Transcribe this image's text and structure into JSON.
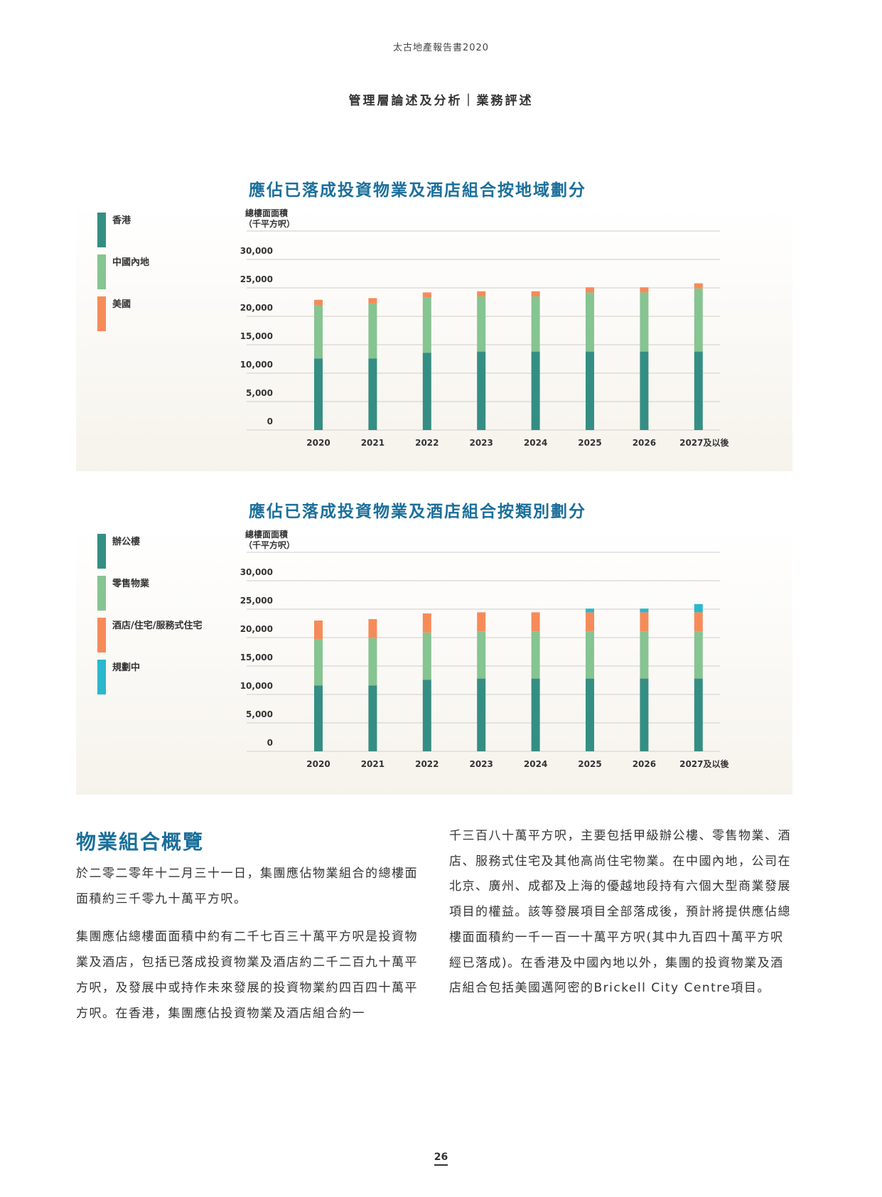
{
  "header": {
    "report_title": "太古地產報告書2020",
    "section": "管理層論述及分析｜業務評述"
  },
  "colors": {
    "teal": "#358e83",
    "green": "#86c491",
    "orange": "#f68b5a",
    "cyan": "#2bb8cc",
    "title_blue": "#1b6f9b"
  },
  "chart_data": [
    {
      "type": "bar",
      "stacked": true,
      "title": "應佔已落成投資物業及酒店組合按地域劃分",
      "ylabel": "總樓面面積\n（千平方呎）",
      "ylabel_lines": [
        "總樓面面積",
        "（千平方呎）"
      ],
      "ylim": [
        0,
        35000
      ],
      "yticks": [
        0,
        5000,
        10000,
        15000,
        20000,
        25000,
        30000
      ],
      "ytick_labels": [
        "0",
        "5,000",
        "10,000",
        "15,000",
        "20,000",
        "25,000",
        "30,000"
      ],
      "grid": true,
      "legend_position": "left",
      "categories": [
        "2020",
        "2021",
        "2022",
        "2023",
        "2024",
        "2025",
        "2026",
        "2027及以後"
      ],
      "series": [
        {
          "name": "香港",
          "color": "#358e83",
          "values": [
            12600,
            12600,
            13600,
            13800,
            13800,
            13800,
            13800,
            13800
          ]
        },
        {
          "name": "中國內地",
          "color": "#86c491",
          "values": [
            9400,
            9700,
            9700,
            9700,
            9700,
            10400,
            10400,
            11100
          ]
        },
        {
          "name": "美國",
          "color": "#f68b5a",
          "values": [
            900,
            900,
            900,
            900,
            900,
            900,
            900,
            900
          ]
        }
      ]
    },
    {
      "type": "bar",
      "stacked": true,
      "title": "應佔已落成投資物業及酒店組合按類別劃分",
      "ylabel_lines": [
        "總樓面面積",
        "（千平方呎）"
      ],
      "ylim": [
        0,
        35000
      ],
      "yticks": [
        0,
        5000,
        10000,
        15000,
        20000,
        25000,
        30000
      ],
      "ytick_labels": [
        "0",
        "5,000",
        "10,000",
        "15,000",
        "20,000",
        "25,000",
        "30,000"
      ],
      "grid": true,
      "legend_position": "left",
      "categories": [
        "2020",
        "2021",
        "2022",
        "2023",
        "2024",
        "2025",
        "2026",
        "2027及以後"
      ],
      "series": [
        {
          "name": "辦公樓",
          "color": "#358e83",
          "values": [
            11600,
            11600,
            12600,
            12800,
            12800,
            12800,
            12800,
            12800
          ]
        },
        {
          "name": "零售物業",
          "color": "#86c491",
          "values": [
            8100,
            8300,
            8300,
            8300,
            8300,
            8300,
            8300,
            8300
          ]
        },
        {
          "name": "酒店/住宅/服務式住宅",
          "color": "#f68b5a",
          "values": [
            3300,
            3350,
            3350,
            3350,
            3350,
            3350,
            3350,
            3350
          ]
        },
        {
          "name": "規劃中",
          "color": "#2bb8cc",
          "values": [
            0,
            0,
            0,
            0,
            0,
            650,
            650,
            1450
          ]
        }
      ]
    }
  ],
  "overview": {
    "title": "物業組合概覽",
    "left_paragraphs": [
      "於二零二零年十二月三十一日，集團應佔物業組合的總樓面面積約三千零九十萬平方呎。",
      "集團應佔總樓面面積中約有二千七百三十萬平方呎是投資物業及酒店，包括已落成投資物業及酒店約二千二百九十萬平方呎，及發展中或持作未來發展的投資物業約四百四十萬平方呎。在香港，集團應佔投資物業及酒店組合約一"
    ],
    "right_paragraphs": [
      "千三百八十萬平方呎，主要包括甲級辦公樓、零售物業、酒店、服務式住宅及其他高尚住宅物業。在中國內地，公司在北京、廣州、成都及上海的優越地段持有六個大型商業發展項目的權益。該等發展項目全部落成後，預計將提供應佔總樓面面積約一千一百一十萬平方呎(其中九百四十萬平方呎經已落成)。在香港及中國內地以外，集團的投資物業及酒店組合包括美國邁阿密的Brickell City Centre項目。"
    ]
  },
  "page_number": "26"
}
